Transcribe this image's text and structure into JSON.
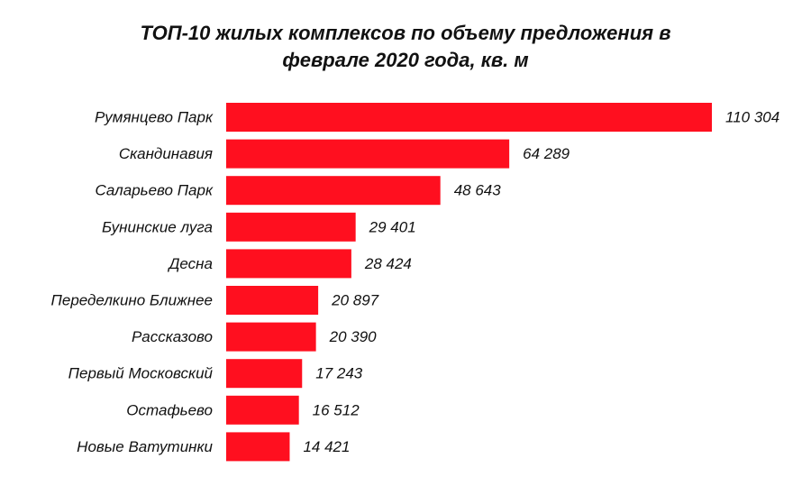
{
  "chart_data": {
    "type": "bar",
    "orientation": "horizontal",
    "title_lines": [
      "ТОП-10 жилых комплексов по объему предложения в",
      "феврале 2020 года, кв. м"
    ],
    "categories": [
      "Румянцево Парк",
      "Скандинавия",
      "Саларьево Парк",
      "Бунинские луга",
      "Десна",
      "Переделкино Ближнее",
      "Рассказово",
      "Первый Московский",
      "Остафьево",
      "Новые Ватутинки"
    ],
    "values": [
      110304,
      64289,
      48643,
      29401,
      28424,
      20897,
      20390,
      17243,
      16512,
      14421
    ],
    "value_labels": [
      "110 304",
      "64 289",
      "48 643",
      "29 401",
      "28 424",
      "20 897",
      "20 390",
      "17 243",
      "16 512",
      "14 421"
    ],
    "xlim": [
      0,
      110304
    ],
    "grid": false,
    "legend": "none",
    "bar_color": "#ff0f1f"
  }
}
